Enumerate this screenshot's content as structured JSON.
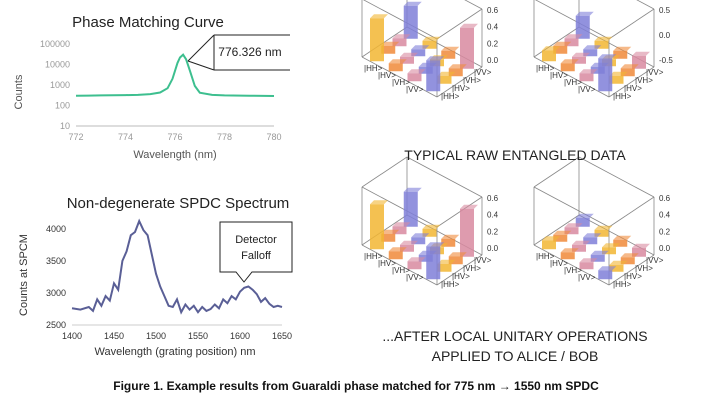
{
  "colors": {
    "phase_line": "#3dbf8f",
    "spdc_line": "#5a5f96",
    "axis": "#bbbbbb",
    "tick_text": "#999999",
    "title_text": "#222222",
    "caption_text": "#111111",
    "bar_yellow": "#f2b632",
    "bar_orange": "#f08a3a",
    "bar_pink": "#d88aa0",
    "bar_blue": "#7f7fd8",
    "cube_edge": "#888888"
  },
  "chart_data": [
    {
      "type": "line",
      "title": "Phase Matching Curve",
      "xlabel": "Wavelength (nm)",
      "ylabel": "Counts",
      "y_scale": "log",
      "xlim": [
        772,
        780
      ],
      "ylim": [
        10,
        100000
      ],
      "xticks": [
        "772",
        "774",
        "776",
        "778",
        "780"
      ],
      "yticks": [
        "10",
        "100",
        "1000",
        "10000",
        "100000"
      ],
      "annotation": "776.326 nm",
      "x": [
        772,
        772.5,
        773,
        773.5,
        774,
        774.5,
        775,
        775.4,
        775.7,
        775.9,
        776.1,
        776.2,
        776.326,
        776.45,
        776.6,
        776.8,
        777,
        777.5,
        778,
        779,
        780
      ],
      "y": [
        300,
        305,
        310,
        315,
        320,
        330,
        360,
        430,
        700,
        2000,
        12000,
        22000,
        30000,
        18000,
        5000,
        900,
        420,
        330,
        310,
        300,
        290
      ]
    },
    {
      "type": "line",
      "title": "Non-degenerate SPDC Spectrum",
      "xlabel": "Wavelength (grating position) nm",
      "ylabel": "Counts at SPCM",
      "xlim": [
        1400,
        1650
      ],
      "ylim": [
        2500,
        4200
      ],
      "xticks": [
        "1400",
        "1450",
        "1500",
        "1550",
        "1600",
        "1650"
      ],
      "yticks": [
        "2500",
        "3000",
        "3500",
        "4000"
      ],
      "annotation": "Detector Falloff",
      "x": [
        1400,
        1410,
        1420,
        1425,
        1430,
        1435,
        1440,
        1445,
        1450,
        1455,
        1460,
        1465,
        1470,
        1475,
        1480,
        1485,
        1490,
        1495,
        1500,
        1505,
        1510,
        1515,
        1520,
        1525,
        1530,
        1535,
        1540,
        1545,
        1550,
        1555,
        1560,
        1565,
        1570,
        1575,
        1580,
        1585,
        1590,
        1595,
        1600,
        1605,
        1610,
        1615,
        1620,
        1625,
        1630,
        1635,
        1640,
        1645,
        1650
      ],
      "y": [
        2760,
        2740,
        2780,
        2720,
        2900,
        2800,
        2950,
        2880,
        3150,
        3050,
        3500,
        3650,
        3900,
        3950,
        4120,
        3980,
        3900,
        3600,
        3300,
        3100,
        2950,
        2800,
        2780,
        2900,
        2700,
        2820,
        2740,
        2800,
        2700,
        2780,
        2720,
        2750,
        2820,
        2760,
        2900,
        2840,
        2950,
        2900,
        3020,
        3080,
        3100,
        3050,
        2980,
        2860,
        2920,
        2830,
        2780,
        2800,
        2780
      ]
    }
  ],
  "density_plots": {
    "row1_caption": "TYPICAL RAW ENTANGLED DATA",
    "row2_caption_line1": "...AFTER LOCAL UNITARY OPERATIONS",
    "row2_caption_line2": "APPLIED TO ALICE / BOB",
    "basis_labels": [
      "|HH>",
      "|HV>",
      "|VH>",
      "|VV>"
    ],
    "z_ticks_left": [
      "0.6",
      "0.4",
      "0.2",
      "0.0"
    ],
    "z_ticks_right": [
      "0.5",
      "0.0",
      "-0.5"
    ],
    "z_ticks_generic": [
      "0.6",
      "0.4",
      "0.2",
      "0.0"
    ]
  },
  "caption": "Figure 1. Example results from Guaraldi phase matched for 775 nm → 1550 nm SPDC"
}
